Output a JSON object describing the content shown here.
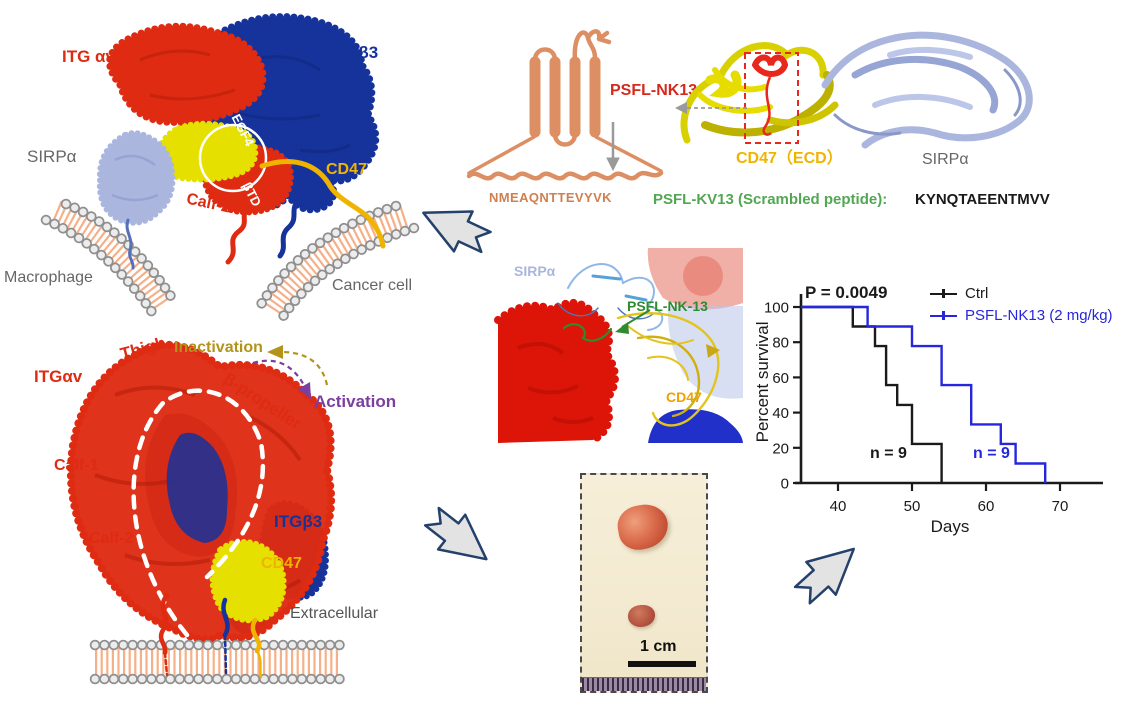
{
  "fig": {
    "complex": {
      "itg_av": "ITG αv",
      "itgb3": "ITGβ3",
      "sirpa": "SIRPα",
      "cd47": "CD47",
      "calf2": "Calf-2",
      "egf4": "EGF4",
      "btd": "βTD",
      "macrophage": "Macrophage",
      "cancer_cell": "Cancer cell"
    },
    "peptide": {
      "name": "PSFL-NK13",
      "sequence": "NMEAQNTTEVYVK",
      "scrambled_name": "PSFL-KV13 (Scrambled peptide):",
      "scrambled_seq": "KYNQTAEENTMVV"
    },
    "ribbons": {
      "cd47_ecd": "CD47（ECD）",
      "sirpa": "SIRPα"
    },
    "closeup": {
      "sirpa": "SIRPα",
      "peptide": "PSFL-NK-13",
      "cd47": "CD47"
    },
    "integrin": {
      "itgav": "ITGαv",
      "thigh": "Thigh",
      "inactivation": "Inactivation",
      "beta_propeller": "β-propeller",
      "activation": "Activation",
      "calf1": "Calf-1",
      "calf2": "Calf-2",
      "itgb3": "ITGβ3",
      "cd47": "CD47",
      "extracellular": "Extracellular"
    },
    "tumor": {
      "scale": "1 cm"
    }
  },
  "colors": {
    "integrin_alpha_red": "#de2b12",
    "integrin_beta_blue": "#16339b",
    "cd47_yellow": "#e6e000",
    "cd47_label_gold": "#f0b400",
    "sirpa_lavender": "#aab6de",
    "membrane_orange": "#f6b088",
    "peptide_cartoon_orange": "#dd8f63",
    "scrambled_green": "#53a653",
    "inactivation_olive": "#b3941a",
    "activation_purple": "#7b3fa0",
    "chart_black": "#1a1a1a",
    "chart_blue": "#2626dd",
    "flow_arrow_fill": "#e3e3e3",
    "flow_arrow_outline": "#24416b"
  },
  "chart_data": {
    "type": "line",
    "subtype": "kaplan-meier-step",
    "p_value": "P = 0.0049",
    "xlabel": "Days",
    "ylabel": "Percent survival",
    "xlim": [
      35,
      75
    ],
    "ylim": [
      0,
      100
    ],
    "xticks": [
      40,
      50,
      60,
      70
    ],
    "yticks": [
      0,
      20,
      40,
      60,
      80,
      100
    ],
    "grid": false,
    "legend_position": "top-right",
    "series": [
      {
        "name": "Ctrl",
        "color": "#1a1a1a",
        "n_label": "n = 9",
        "points": [
          [
            35,
            100
          ],
          [
            42,
            100
          ],
          [
            42,
            88.9
          ],
          [
            45,
            88.9
          ],
          [
            45,
            77.8
          ],
          [
            46.5,
            77.8
          ],
          [
            46.5,
            55.6
          ],
          [
            48,
            55.6
          ],
          [
            48,
            44.4
          ],
          [
            50,
            44.4
          ],
          [
            50,
            22.2
          ],
          [
            54,
            22.2
          ],
          [
            54,
            0
          ]
        ]
      },
      {
        "name": "PSFL-NK13 (2 mg/kg)",
        "color": "#2626dd",
        "n_label": "n = 9",
        "points": [
          [
            35,
            100
          ],
          [
            44,
            100
          ],
          [
            44,
            88.9
          ],
          [
            50,
            88.9
          ],
          [
            50,
            77.8
          ],
          [
            54,
            77.8
          ],
          [
            54,
            55.6
          ],
          [
            58,
            55.6
          ],
          [
            58,
            33.3
          ],
          [
            62,
            33.3
          ],
          [
            62,
            22.2
          ],
          [
            64,
            22.2
          ],
          [
            64,
            11.1
          ],
          [
            68,
            11.1
          ],
          [
            68,
            0
          ]
        ]
      }
    ]
  }
}
